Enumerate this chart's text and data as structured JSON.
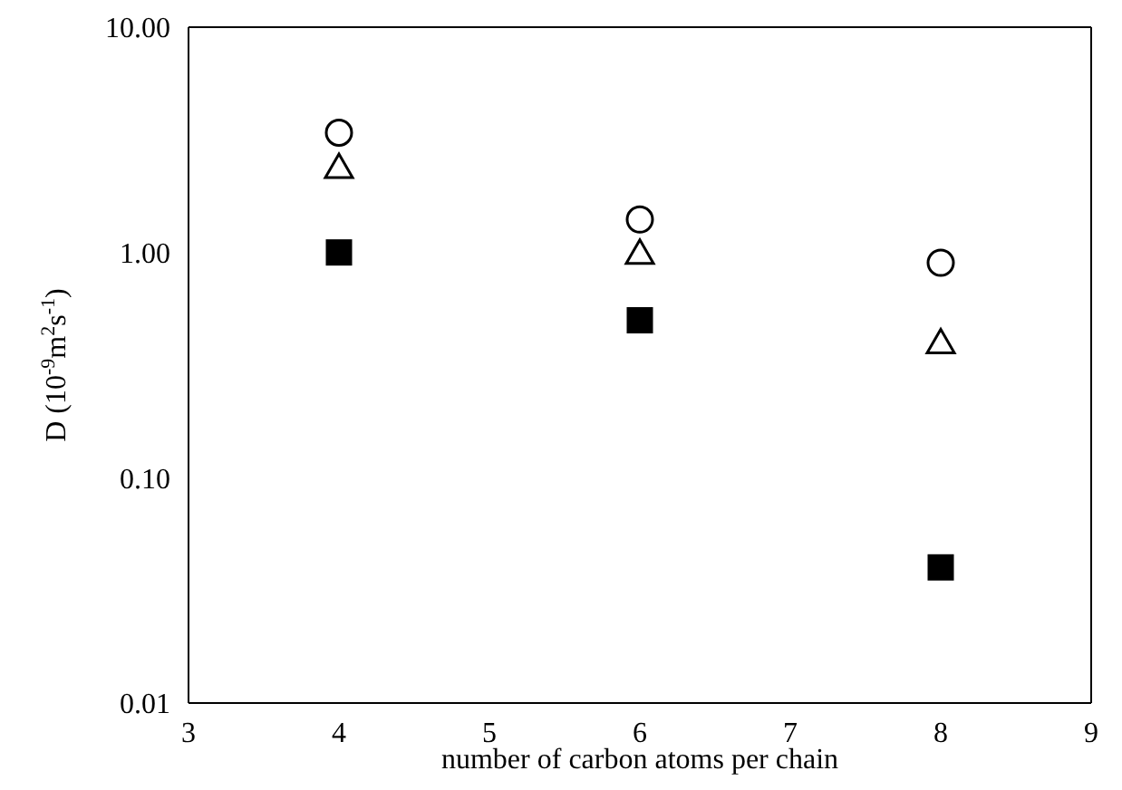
{
  "chart_data": {
    "type": "scatter",
    "xlabel": "number of carbon atoms per chain",
    "ylabel": "D (10$^{-9}$m$^{2}$s$^{-1}$)",
    "x": [
      4,
      6,
      8
    ],
    "log": "y",
    "xlim": [
      3,
      9
    ],
    "xticks": [
      3,
      4,
      5,
      6,
      7,
      8,
      9
    ],
    "ylim": [
      0.01,
      10
    ],
    "yticks": [
      {
        "value": 0.01,
        "label": "0.01"
      },
      {
        "value": 0.1,
        "label": "0.10"
      },
      {
        "value": 1,
        "label": "1.00"
      },
      {
        "value": 10,
        "label": "10.00"
      }
    ],
    "grid": false,
    "legend": false,
    "series": [
      {
        "color": "#000000",
        "marker": "circle",
        "values": [
          3.4,
          1.4,
          0.9
        ]
      },
      {
        "color": "#000000",
        "marker": "triangle",
        "values": [
          2.4,
          1.0,
          0.4
        ]
      },
      {
        "color": "#000000",
        "marker": "square",
        "values": [
          1.0,
          0.5,
          0.04
        ]
      }
    ]
  }
}
